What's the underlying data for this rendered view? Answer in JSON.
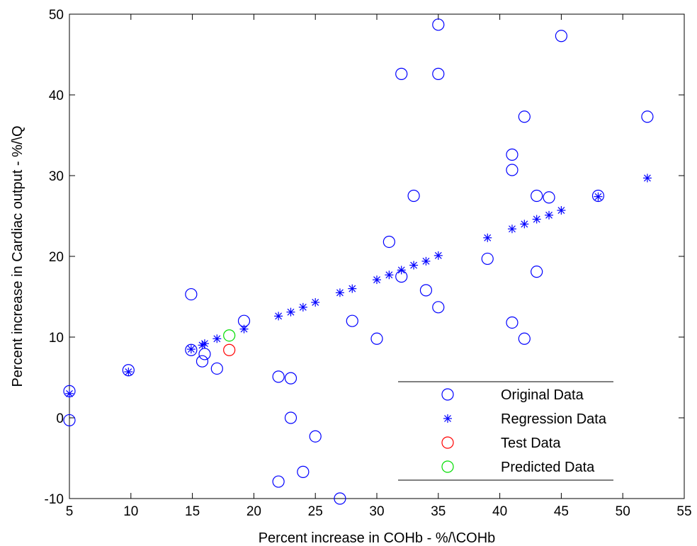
{
  "chart_data": {
    "type": "scatter",
    "title": "",
    "xlabel": "Percent increase in COHb - %/\\COHb",
    "ylabel": "Percent increase in Cardiac output - %/\\Q",
    "xlim": [
      5,
      55
    ],
    "ylim": [
      -10,
      50
    ],
    "xticks": [
      5,
      10,
      15,
      20,
      25,
      30,
      35,
      40,
      45,
      50,
      55
    ],
    "yticks": [
      -10,
      0,
      10,
      20,
      30,
      40,
      50
    ],
    "grid": false,
    "legend_position": "bottom-right",
    "series": [
      {
        "name": "Original Data",
        "marker": "circle",
        "color": "#0000ff",
        "points": [
          [
            5,
            3.3
          ],
          [
            5,
            -0.3
          ],
          [
            9.8,
            5.9
          ],
          [
            14.9,
            15.3
          ],
          [
            14.9,
            8.4
          ],
          [
            15.8,
            7.0
          ],
          [
            16.0,
            7.9
          ],
          [
            17.0,
            6.1
          ],
          [
            19.2,
            12.0
          ],
          [
            22.0,
            5.1
          ],
          [
            23.0,
            4.9
          ],
          [
            23.0,
            0.0
          ],
          [
            22.0,
            -7.9
          ],
          [
            24.0,
            -6.7
          ],
          [
            25.0,
            -2.3
          ],
          [
            27.0,
            -10.0
          ],
          [
            28.0,
            12.0
          ],
          [
            30.0,
            9.8
          ],
          [
            31.0,
            21.8
          ],
          [
            32.0,
            17.5
          ],
          [
            32.0,
            42.6
          ],
          [
            33.0,
            27.5
          ],
          [
            34.0,
            15.8
          ],
          [
            35.0,
            13.7
          ],
          [
            35.0,
            48.7
          ],
          [
            35.0,
            42.6
          ],
          [
            39.0,
            19.7
          ],
          [
            41.0,
            32.6
          ],
          [
            41.0,
            30.7
          ],
          [
            41.0,
            11.8
          ],
          [
            42.0,
            37.3
          ],
          [
            42.0,
            9.8
          ],
          [
            43.0,
            27.5
          ],
          [
            43.0,
            18.1
          ],
          [
            44.0,
            27.3
          ],
          [
            45.0,
            47.3
          ],
          [
            48.0,
            27.5
          ],
          [
            52.0,
            37.3
          ]
        ]
      },
      {
        "name": "Regression Data",
        "marker": "star",
        "color": "#0000ff",
        "points": [
          [
            5,
            3.0
          ],
          [
            9.8,
            5.7
          ],
          [
            14.9,
            8.5
          ],
          [
            15.8,
            9.0
          ],
          [
            16.0,
            9.2
          ],
          [
            17.0,
            9.8
          ],
          [
            19.2,
            11.0
          ],
          [
            22.0,
            12.6
          ],
          [
            23.0,
            13.1
          ],
          [
            24.0,
            13.7
          ],
          [
            25.0,
            14.3
          ],
          [
            27.0,
            15.5
          ],
          [
            28.0,
            16.0
          ],
          [
            30.0,
            17.1
          ],
          [
            31.0,
            17.7
          ],
          [
            32.0,
            18.3
          ],
          [
            33.0,
            18.9
          ],
          [
            34.0,
            19.4
          ],
          [
            35.0,
            20.1
          ],
          [
            39.0,
            22.3
          ],
          [
            41.0,
            23.4
          ],
          [
            42.0,
            24.0
          ],
          [
            43.0,
            24.6
          ],
          [
            44.0,
            25.1
          ],
          [
            45.0,
            25.7
          ],
          [
            48.0,
            27.4
          ],
          [
            52.0,
            29.7
          ]
        ]
      },
      {
        "name": "Test Data",
        "marker": "circle",
        "color": "#ff0000",
        "points": [
          [
            18.0,
            8.4
          ]
        ]
      },
      {
        "name": "Predicted Data",
        "marker": "circle",
        "color": "#00dd00",
        "points": [
          [
            18.0,
            10.2
          ]
        ]
      }
    ]
  }
}
